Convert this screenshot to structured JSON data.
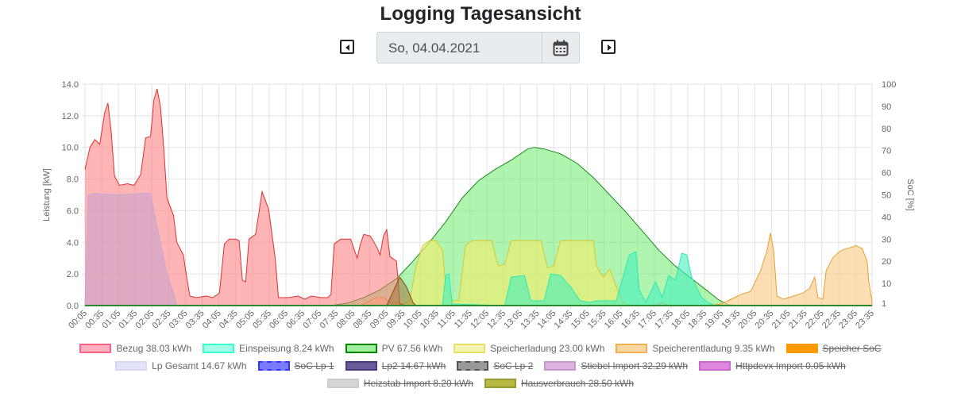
{
  "page_title": "Logging Tagesansicht",
  "date_value": "So, 04.04.2021",
  "icons": {
    "prev": "caret-left-icon",
    "next": "caret-right-icon",
    "calendar": "calendar-icon"
  },
  "legend_rows": [
    [
      {
        "label": "Bezug 38.03 kWh",
        "color": "#ff6384",
        "fill": "#ffb1c1",
        "hidden": false
      },
      {
        "label": "Einspeisung 8.24 kWh",
        "color": "#33ffcc",
        "fill": "#a5ffe8",
        "hidden": false
      },
      {
        "label": "PV 67.56 kWh",
        "color": "#008800",
        "fill": "#a0f0a0",
        "hidden": false
      },
      {
        "label": "Speicherladung 23.00 kWh",
        "color": "#e8e060",
        "fill": "#f5f3b5",
        "hidden": false
      },
      {
        "label": "Speicherentladung 9.35 kWh",
        "color": "#f0b050",
        "fill": "#fbd7a5",
        "hidden": false
      },
      {
        "label": "Speicher SoC",
        "color": "#ff9900",
        "fill": "#ff9900",
        "hidden": true
      }
    ],
    [
      {
        "label": "Lp Gesamt 14.67 kWh",
        "color": "#d8d8f4",
        "fill": "#e2e2f8",
        "hidden": false
      },
      {
        "label": "SoC Lp 1",
        "color": "#3333ff",
        "fill": "#7a7aff",
        "dashed": true,
        "hidden": true
      },
      {
        "label": "Lp2 14.67 kWh",
        "color": "#4a3a80",
        "fill": "#6a5a9a",
        "hidden": true
      },
      {
        "label": "SoC Lp 2",
        "color": "#555555",
        "fill": "#999999",
        "dashed": true,
        "hidden": true
      },
      {
        "label": "Stiebel Import 32.29 kWh",
        "color": "#cc99cc",
        "fill": "#ddb3dd",
        "hidden": true
      },
      {
        "label": "Httpdevx Import 0.05 kWh",
        "color": "#cc66cc",
        "fill": "#dd88dd",
        "hidden": true
      }
    ],
    [
      {
        "label": "Heizstab Import 8.20 kWh",
        "color": "#cccccc",
        "fill": "#d6d6d6",
        "hidden": true
      },
      {
        "label": "Hausverbrauch 28.50 kWh",
        "color": "#999933",
        "fill": "#b8b845",
        "hidden": true
      }
    ]
  ],
  "chart_data": {
    "type": "area",
    "x_ticks": [
      "00:05",
      "00:35",
      "01:05",
      "01:35",
      "02:05",
      "02:35",
      "03:05",
      "03:35",
      "04:05",
      "04:35",
      "05:05",
      "05:35",
      "06:05",
      "06:35",
      "07:05",
      "07:35",
      "08:05",
      "08:35",
      "09:05",
      "09:35",
      "10:05",
      "10:35",
      "11:05",
      "11:35",
      "12:05",
      "12:35",
      "13:05",
      "13:35",
      "14:05",
      "14:35",
      "15:05",
      "15:35",
      "16:05",
      "16:35",
      "17:05",
      "17:35",
      "18:05",
      "18:35",
      "19:05",
      "19:35",
      "20:05",
      "20:35",
      "21:05",
      "21:35",
      "22:05",
      "22:35",
      "23:05",
      "23:35"
    ],
    "y_left": {
      "label": "Leistung [kW]",
      "min": 0,
      "max": 14,
      "ticks": [
        "0.0",
        "2.0",
        "4.0",
        "6.0",
        "8.0",
        "10.0",
        "12.0",
        "14.0"
      ]
    },
    "y_right": {
      "label": "SoC [%]",
      "min": 0,
      "max": 100,
      "ticks": [
        "1",
        "10",
        "20",
        "30",
        "40",
        "50",
        "60",
        "70",
        "80",
        "90",
        "100"
      ]
    },
    "x_range_hours": [
      0,
      24
    ],
    "series": [
      {
        "name": "PV 67.56 kWh",
        "color": "#1a8a1a",
        "fill": "rgba(110,235,110,0.55)",
        "points": [
          [
            7.5,
            0
          ],
          [
            8.0,
            0.15
          ],
          [
            8.5,
            0.5
          ],
          [
            9.0,
            1.0
          ],
          [
            9.5,
            1.7
          ],
          [
            10.0,
            2.8
          ],
          [
            10.5,
            4.0
          ],
          [
            11.0,
            5.3
          ],
          [
            11.5,
            6.8
          ],
          [
            12.0,
            7.9
          ],
          [
            12.5,
            8.6
          ],
          [
            13.0,
            9.2
          ],
          [
            13.5,
            9.9
          ],
          [
            13.7,
            10.0
          ],
          [
            14.0,
            9.9
          ],
          [
            14.5,
            9.6
          ],
          [
            15.0,
            9.0
          ],
          [
            15.5,
            8.1
          ],
          [
            16.0,
            7.0
          ],
          [
            16.5,
            5.9
          ],
          [
            17.0,
            4.7
          ],
          [
            17.5,
            3.5
          ],
          [
            18.0,
            2.5
          ],
          [
            18.5,
            1.7
          ],
          [
            19.0,
            0.9
          ],
          [
            19.3,
            0.4
          ],
          [
            19.6,
            0.05
          ],
          [
            20.0,
            0
          ]
        ]
      },
      {
        "name": "Speicherladung 23.00 kWh",
        "color": "#d8c830",
        "fill": "rgba(238,238,110,0.65)",
        "points": [
          [
            9.6,
            0
          ],
          [
            9.9,
            0.3
          ],
          [
            10.1,
            2.5
          ],
          [
            10.3,
            3.8
          ],
          [
            10.5,
            4.1
          ],
          [
            10.7,
            4.1
          ],
          [
            10.9,
            3.5
          ],
          [
            11.0,
            1.2
          ],
          [
            11.2,
            0.3
          ],
          [
            11.4,
            0.3
          ],
          [
            11.6,
            3.8
          ],
          [
            11.8,
            4.1
          ],
          [
            12.4,
            4.1
          ],
          [
            12.6,
            2.5
          ],
          [
            12.8,
            2.6
          ],
          [
            13.0,
            4.1
          ],
          [
            13.9,
            4.1
          ],
          [
            14.1,
            2.4
          ],
          [
            14.3,
            2.5
          ],
          [
            14.5,
            4.1
          ],
          [
            15.5,
            4.1
          ],
          [
            15.6,
            2.5
          ],
          [
            15.8,
            1.8
          ],
          [
            16.0,
            2.3
          ],
          [
            16.2,
            1.2
          ],
          [
            16.4,
            0.2
          ],
          [
            16.6,
            0
          ]
        ]
      },
      {
        "name": "Speicherentladung 9.35 kWh",
        "color": "#e8a030",
        "fill": "rgba(250,205,140,0.65)",
        "points": [
          [
            0,
            0
          ],
          [
            8.4,
            0
          ],
          [
            8.6,
            0.2
          ],
          [
            8.9,
            0.5
          ],
          [
            9.1,
            0.5
          ],
          [
            9.3,
            0.2
          ],
          [
            9.6,
            0.2
          ],
          [
            9.7,
            0
          ],
          [
            17.4,
            0
          ],
          [
            17.6,
            0.2
          ],
          [
            17.8,
            0
          ],
          [
            18.2,
            0
          ],
          [
            18.5,
            0
          ],
          [
            19.0,
            0
          ],
          [
            19.4,
            0.1
          ],
          [
            19.7,
            0.4
          ],
          [
            20.0,
            0.7
          ],
          [
            20.3,
            0.9
          ],
          [
            20.6,
            2.2
          ],
          [
            20.8,
            3.5
          ],
          [
            20.9,
            4.6
          ],
          [
            21.0,
            3.5
          ],
          [
            21.1,
            0.6
          ],
          [
            21.3,
            0.4
          ],
          [
            21.6,
            0.6
          ],
          [
            21.9,
            0.8
          ],
          [
            22.1,
            1.1
          ],
          [
            22.25,
            1.8
          ],
          [
            22.35,
            0.5
          ],
          [
            22.5,
            0.4
          ],
          [
            22.6,
            2.2
          ],
          [
            22.8,
            3.0
          ],
          [
            23.0,
            3.4
          ],
          [
            23.2,
            3.6
          ],
          [
            23.4,
            3.7
          ],
          [
            23.5,
            3.8
          ],
          [
            23.7,
            3.6
          ],
          [
            23.85,
            2.8
          ],
          [
            23.9,
            1.5
          ],
          [
            24.0,
            0.3
          ],
          [
            24.0,
            0
          ]
        ]
      },
      {
        "name": "Einspeisung 8.24 kWh",
        "color": "#30e8b0",
        "fill": "rgba(70,240,190,0.60)",
        "points": [
          [
            10.9,
            0
          ],
          [
            11.0,
            1.9
          ],
          [
            11.1,
            2.0
          ],
          [
            11.2,
            0.1
          ],
          [
            12.8,
            0
          ],
          [
            13.0,
            1.8
          ],
          [
            13.4,
            1.9
          ],
          [
            13.6,
            0.3
          ],
          [
            14.0,
            0.3
          ],
          [
            14.2,
            2.0
          ],
          [
            14.5,
            1.9
          ],
          [
            14.8,
            1.2
          ],
          [
            15.1,
            0.3
          ],
          [
            15.4,
            0.2
          ],
          [
            15.6,
            0.3
          ],
          [
            16.2,
            0.3
          ],
          [
            16.6,
            3.2
          ],
          [
            16.8,
            3.4
          ],
          [
            16.9,
            1.0
          ],
          [
            17.1,
            0.2
          ],
          [
            17.4,
            1.5
          ],
          [
            17.6,
            0.5
          ],
          [
            17.8,
            1.9
          ],
          [
            18.0,
            1.6
          ],
          [
            18.2,
            3.3
          ],
          [
            18.35,
            3.2
          ],
          [
            18.5,
            1.8
          ],
          [
            18.8,
            0.5
          ],
          [
            19.0,
            0.2
          ],
          [
            19.2,
            0
          ]
        ]
      },
      {
        "name": "Bezug 38.03 kWh",
        "color": "#e03030",
        "fill": "rgba(255,120,120,0.55)",
        "points": [
          [
            0,
            8.6
          ],
          [
            0.15,
            10.0
          ],
          [
            0.3,
            10.5
          ],
          [
            0.45,
            10.2
          ],
          [
            0.6,
            12.2
          ],
          [
            0.7,
            12.8
          ],
          [
            0.8,
            11.0
          ],
          [
            0.9,
            8.2
          ],
          [
            1.05,
            7.6
          ],
          [
            1.3,
            7.7
          ],
          [
            1.5,
            7.6
          ],
          [
            1.7,
            8.3
          ],
          [
            1.85,
            10.6
          ],
          [
            2.0,
            10.7
          ],
          [
            2.1,
            13.0
          ],
          [
            2.2,
            13.7
          ],
          [
            2.3,
            12.6
          ],
          [
            2.4,
            10.0
          ],
          [
            2.5,
            6.8
          ],
          [
            2.7,
            5.7
          ],
          [
            2.8,
            4.0
          ],
          [
            3.0,
            3.2
          ],
          [
            3.1,
            1.8
          ],
          [
            3.2,
            0.6
          ],
          [
            3.4,
            0.5
          ],
          [
            3.7,
            0.6
          ],
          [
            3.9,
            0.5
          ],
          [
            4.1,
            0.8
          ],
          [
            4.25,
            3.9
          ],
          [
            4.4,
            4.2
          ],
          [
            4.6,
            4.2
          ],
          [
            4.7,
            4.1
          ],
          [
            4.8,
            1.6
          ],
          [
            4.9,
            1.5
          ],
          [
            5.0,
            4.2
          ],
          [
            5.2,
            4.5
          ],
          [
            5.3,
            5.8
          ],
          [
            5.4,
            7.2
          ],
          [
            5.6,
            6.1
          ],
          [
            5.8,
            3.0
          ],
          [
            5.9,
            0.5
          ],
          [
            6.2,
            0.5
          ],
          [
            6.5,
            0.6
          ],
          [
            6.7,
            0.4
          ],
          [
            6.9,
            0.6
          ],
          [
            7.2,
            0.5
          ],
          [
            7.4,
            0.5
          ],
          [
            7.5,
            0.7
          ],
          [
            7.6,
            3.9
          ],
          [
            7.8,
            4.2
          ],
          [
            8.1,
            4.2
          ],
          [
            8.3,
            3.0
          ],
          [
            8.4,
            3.9
          ],
          [
            8.5,
            4.5
          ],
          [
            8.7,
            4.4
          ],
          [
            8.9,
            3.7
          ],
          [
            9.0,
            3.2
          ],
          [
            9.1,
            4.4
          ],
          [
            9.2,
            4.8
          ],
          [
            9.3,
            3.1
          ],
          [
            9.5,
            2.8
          ],
          [
            9.6,
            0.1
          ],
          [
            9.8,
            0
          ]
        ]
      },
      {
        "name": "Lp Gesamt 14.67 kWh",
        "color": "#c8a8d0",
        "fill": "rgba(195,160,205,0.55)",
        "points": [
          [
            0,
            0
          ],
          [
            0.1,
            7.0
          ],
          [
            0.3,
            7.1
          ],
          [
            1.0,
            7.0
          ],
          [
            1.8,
            7.1
          ],
          [
            2.0,
            7.1
          ],
          [
            2.1,
            6.0
          ],
          [
            2.3,
            4.0
          ],
          [
            2.5,
            2.0
          ],
          [
            2.7,
            0.8
          ],
          [
            2.8,
            0
          ]
        ]
      },
      {
        "name": "Hausverbrauch",
        "color": "#8b4513",
        "fill": "rgba(160,120,60,0.55)",
        "points": [
          [
            9.2,
            0
          ],
          [
            9.6,
            1.8
          ],
          [
            9.8,
            1.2
          ],
          [
            10.0,
            0.2
          ],
          [
            10.1,
            0
          ]
        ]
      }
    ]
  }
}
